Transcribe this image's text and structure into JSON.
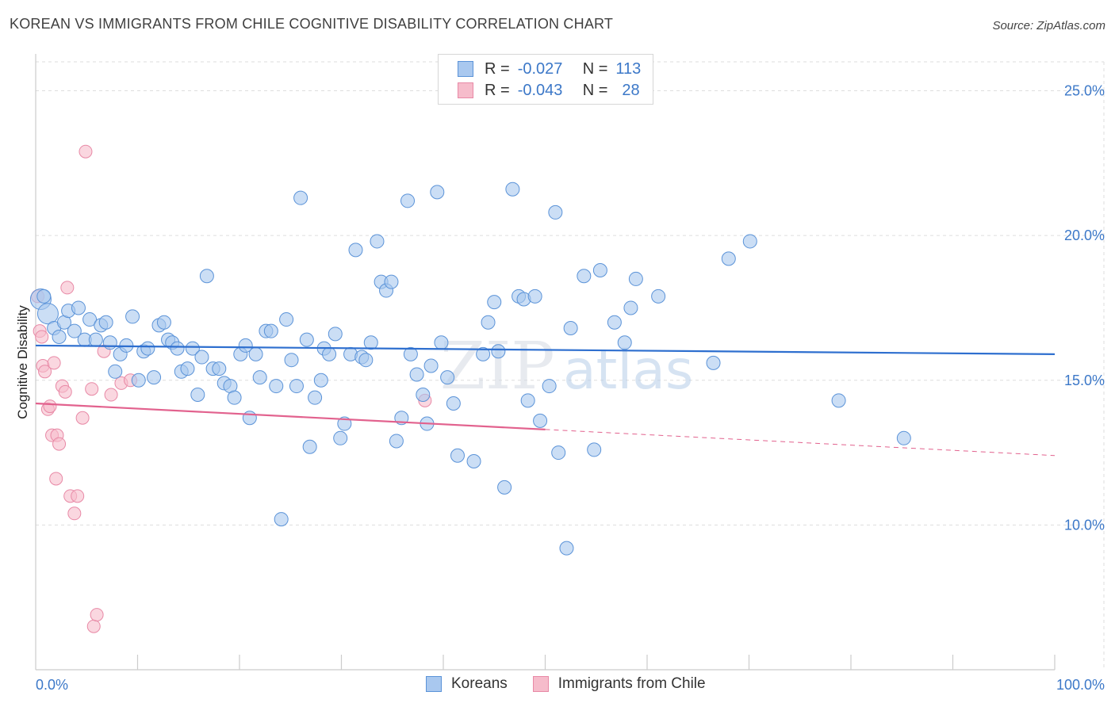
{
  "title": "KOREAN VS IMMIGRANTS FROM CHILE COGNITIVE DISABILITY CORRELATION CHART",
  "source": "Source: ZipAtlas.com",
  "legend": {
    "rows": [
      {
        "r_label": "R =",
        "r_value": "-0.027",
        "n_label": "N =",
        "n_value": "113"
      },
      {
        "r_label": "R =",
        "r_value": "-0.043",
        "n_label": "N =",
        "n_value": "28"
      }
    ]
  },
  "bottom_legend": {
    "koreans": "Koreans",
    "chile": "Immigrants from Chile"
  },
  "watermark": {
    "zip": "ZIP",
    "atlas": "atlas"
  },
  "colors": {
    "korean_fill": "#a9c8ef",
    "korean_stroke": "#5b93d8",
    "korean_line": "#2e6fcf",
    "chile_fill": "#f6bccb",
    "chile_stroke": "#e889a6",
    "chile_line": "#e2628e",
    "grid": "#dddddd",
    "axis_text": "#3c78c8"
  },
  "chart_data": {
    "type": "scatter",
    "title": "KOREAN VS IMMIGRANTS FROM CHILE COGNITIVE DISABILITY CORRELATION CHART",
    "xlabel": "",
    "ylabel": "Cognitive Disability",
    "xlim": [
      0,
      100
    ],
    "ylim": [
      5,
      26
    ],
    "x_tick_labels": [
      "0.0%",
      "100.0%"
    ],
    "y_ticks": [
      10,
      15,
      20,
      25
    ],
    "y_tick_labels": [
      "10.0%",
      "15.0%",
      "20.0%",
      "25.0%"
    ],
    "series": [
      {
        "name": "Koreans",
        "R": -0.027,
        "N": 113,
        "trend": {
          "x": [
            0,
            100
          ],
          "y": [
            16.2,
            15.9
          ]
        },
        "points": [
          [
            0.5,
            17.8
          ],
          [
            1.2,
            17.3
          ],
          [
            1.8,
            16.8
          ],
          [
            2.3,
            16.5
          ],
          [
            2.8,
            17.0
          ],
          [
            3.2,
            17.4
          ],
          [
            3.8,
            16.7
          ],
          [
            4.2,
            17.5
          ],
          [
            4.8,
            16.4
          ],
          [
            5.3,
            17.1
          ],
          [
            5.9,
            16.4
          ],
          [
            6.4,
            16.9
          ],
          [
            6.9,
            17.0
          ],
          [
            7.3,
            16.3
          ],
          [
            7.8,
            15.3
          ],
          [
            8.3,
            15.9
          ],
          [
            8.9,
            16.2
          ],
          [
            9.5,
            17.2
          ],
          [
            10.1,
            15.0
          ],
          [
            10.6,
            16.0
          ],
          [
            11.0,
            16.1
          ],
          [
            11.6,
            15.1
          ],
          [
            12.1,
            16.9
          ],
          [
            12.6,
            17.0
          ],
          [
            13.0,
            16.4
          ],
          [
            13.4,
            16.3
          ],
          [
            13.9,
            16.1
          ],
          [
            14.3,
            15.3
          ],
          [
            14.9,
            15.4
          ],
          [
            15.4,
            16.1
          ],
          [
            15.9,
            14.5
          ],
          [
            16.3,
            15.8
          ],
          [
            16.8,
            18.6
          ],
          [
            17.4,
            15.4
          ],
          [
            18.0,
            15.4
          ],
          [
            18.5,
            14.9
          ],
          [
            19.1,
            14.8
          ],
          [
            19.5,
            14.4
          ],
          [
            20.1,
            15.9
          ],
          [
            20.6,
            16.2
          ],
          [
            21.0,
            13.7
          ],
          [
            21.6,
            15.9
          ],
          [
            22.0,
            15.1
          ],
          [
            22.6,
            16.7
          ],
          [
            23.1,
            16.7
          ],
          [
            23.6,
            14.8
          ],
          [
            24.1,
            10.2
          ],
          [
            24.6,
            17.1
          ],
          [
            25.1,
            15.7
          ],
          [
            25.6,
            14.8
          ],
          [
            26.0,
            21.3
          ],
          [
            26.6,
            16.4
          ],
          [
            26.9,
            12.7
          ],
          [
            27.4,
            14.4
          ],
          [
            28.0,
            15.0
          ],
          [
            28.3,
            16.1
          ],
          [
            28.8,
            15.9
          ],
          [
            29.4,
            16.6
          ],
          [
            29.9,
            13.0
          ],
          [
            30.3,
            13.5
          ],
          [
            30.9,
            15.9
          ],
          [
            31.4,
            19.5
          ],
          [
            32.0,
            15.8
          ],
          [
            32.4,
            15.7
          ],
          [
            32.9,
            16.3
          ],
          [
            33.5,
            19.8
          ],
          [
            33.9,
            18.4
          ],
          [
            34.4,
            18.1
          ],
          [
            34.9,
            18.4
          ],
          [
            35.4,
            12.9
          ],
          [
            35.9,
            13.7
          ],
          [
            36.5,
            21.2
          ],
          [
            36.8,
            15.9
          ],
          [
            37.4,
            15.2
          ],
          [
            38.0,
            14.5
          ],
          [
            38.4,
            13.5
          ],
          [
            38.8,
            15.5
          ],
          [
            39.4,
            21.5
          ],
          [
            39.8,
            16.3
          ],
          [
            40.4,
            15.1
          ],
          [
            41.0,
            14.2
          ],
          [
            41.4,
            12.4
          ],
          [
            43.0,
            12.2
          ],
          [
            43.9,
            15.9
          ],
          [
            44.4,
            17.0
          ],
          [
            45.0,
            17.7
          ],
          [
            45.4,
            16.0
          ],
          [
            46.0,
            11.3
          ],
          [
            46.8,
            21.6
          ],
          [
            47.4,
            17.9
          ],
          [
            47.9,
            17.8
          ],
          [
            48.3,
            14.3
          ],
          [
            49.0,
            17.9
          ],
          [
            49.5,
            13.6
          ],
          [
            50.4,
            14.8
          ],
          [
            51.0,
            20.8
          ],
          [
            51.3,
            12.5
          ],
          [
            52.1,
            9.2
          ],
          [
            52.5,
            16.8
          ],
          [
            53.8,
            18.6
          ],
          [
            54.8,
            12.6
          ],
          [
            55.4,
            18.8
          ],
          [
            56.8,
            17.0
          ],
          [
            57.8,
            16.3
          ],
          [
            58.4,
            17.5
          ],
          [
            58.9,
            18.5
          ],
          [
            61.1,
            17.9
          ],
          [
            66.5,
            15.6
          ],
          [
            68.0,
            19.2
          ],
          [
            70.1,
            19.8
          ],
          [
            78.8,
            14.3
          ],
          [
            85.2,
            13.0
          ],
          [
            0.8,
            17.9
          ]
        ]
      },
      {
        "name": "Immigrants from Chile",
        "R": -0.043,
        "N": 28,
        "trend": {
          "x": [
            0,
            50
          ],
          "y": [
            14.2,
            13.3
          ]
        },
        "trend_dashed": {
          "x": [
            50,
            100
          ],
          "y": [
            13.3,
            12.4
          ]
        },
        "points": [
          [
            0.2,
            17.9
          ],
          [
            0.4,
            16.7
          ],
          [
            0.6,
            16.5
          ],
          [
            0.7,
            15.5
          ],
          [
            0.9,
            15.3
          ],
          [
            1.2,
            14.0
          ],
          [
            1.4,
            14.1
          ],
          [
            1.6,
            13.1
          ],
          [
            1.8,
            15.6
          ],
          [
            2.0,
            11.6
          ],
          [
            2.1,
            13.1
          ],
          [
            2.3,
            12.8
          ],
          [
            2.6,
            14.8
          ],
          [
            2.9,
            14.6
          ],
          [
            3.1,
            18.2
          ],
          [
            3.4,
            11.0
          ],
          [
            3.8,
            10.4
          ],
          [
            4.1,
            11.0
          ],
          [
            4.6,
            13.7
          ],
          [
            4.9,
            22.9
          ],
          [
            5.5,
            14.7
          ],
          [
            5.7,
            6.5
          ],
          [
            6.0,
            6.9
          ],
          [
            6.7,
            16.0
          ],
          [
            7.4,
            14.5
          ],
          [
            8.4,
            14.9
          ],
          [
            9.3,
            15.0
          ],
          [
            38.2,
            14.3
          ]
        ]
      }
    ]
  }
}
